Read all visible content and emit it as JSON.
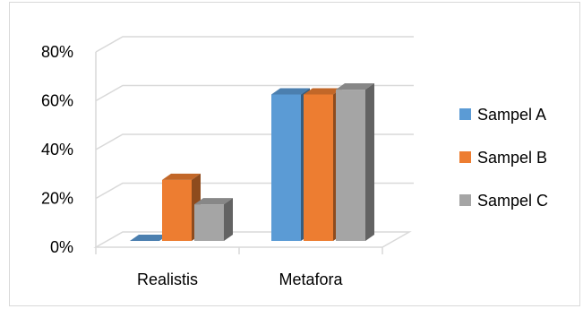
{
  "chart_data": {
    "type": "bar",
    "style": "3d-clustered-column",
    "categories": [
      "Realistis",
      "Metafora"
    ],
    "series": [
      {
        "name": "Sampel A",
        "values": [
          0,
          60
        ],
        "color": "#5B9BD5"
      },
      {
        "name": "Sampel B",
        "values": [
          25,
          60
        ],
        "color": "#ED7D31"
      },
      {
        "name": "Sampel C",
        "values": [
          15,
          62
        ],
        "color": "#A5A5A5"
      }
    ],
    "ylim": [
      0,
      80
    ],
    "yticks": [
      "0%",
      "20%",
      "40%",
      "60%",
      "80%"
    ],
    "title": "",
    "xlabel": "",
    "ylabel": "",
    "grid": true,
    "legend_position": "right"
  }
}
